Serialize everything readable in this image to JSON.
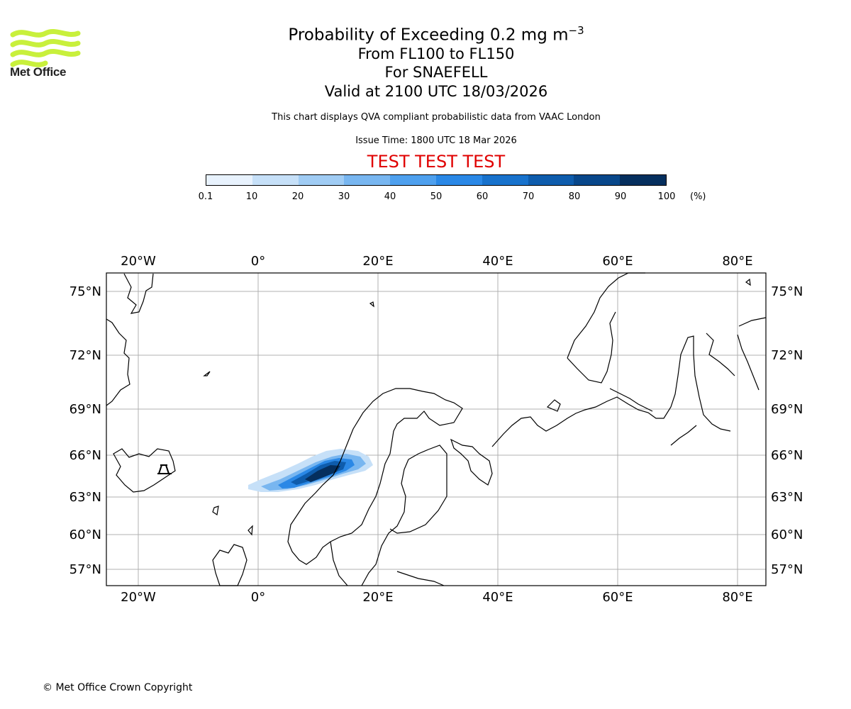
{
  "header": {
    "title_main": "Probability of Exceeding 0.2 mg m",
    "title_superscript": "−3",
    "level_range": "From FL100 to FL150",
    "volcano": "For SNAEFELL",
    "valid_time": "Valid at 2100 UTC 18/03/2026",
    "description": "This chart displays QVA compliant probabilistic data from VAAC London",
    "issue_time": "Issue Time: 1800 UTC 18 Mar 2026",
    "test_banner": "TEST TEST TEST"
  },
  "logo": {
    "text": "Met Office",
    "accent_color": "#c8f03c"
  },
  "colorbar": {
    "ticks": [
      "0.1",
      "10",
      "20",
      "30",
      "40",
      "50",
      "60",
      "70",
      "80",
      "90",
      "100"
    ],
    "unit": "(%)",
    "colors": [
      "#e8f2fd",
      "#c6e0f8",
      "#a0ccf4",
      "#78b6f0",
      "#4ea0ee",
      "#2a88e6",
      "#1872cc",
      "#0e5cac",
      "#08478a",
      "#052f5e"
    ]
  },
  "map": {
    "lon_labels": [
      "20°W",
      "0°",
      "20°E",
      "40°E",
      "60°E",
      "80°E"
    ],
    "lat_labels": [
      "75°N",
      "72°N",
      "69°N",
      "66°N",
      "63°N",
      "60°N",
      "57°N"
    ],
    "extent": {
      "lon": [
        -25,
        85
      ],
      "lat": [
        55.5,
        76
      ]
    },
    "volcano_marker": "volcano-icon"
  },
  "footer": {
    "copyright": "© Met Office Crown Copyright"
  }
}
